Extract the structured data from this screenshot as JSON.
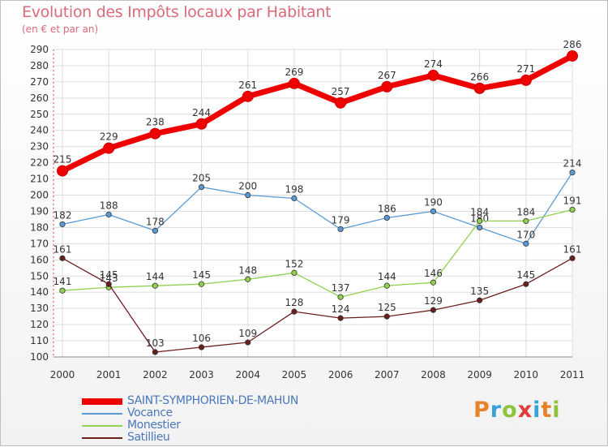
{
  "title": "Evolution des Impôts locaux par Habitant",
  "subtitle": "(en € et par an)",
  "logo": {
    "letters": [
      "P",
      "r",
      "o",
      "x",
      "i",
      "t",
      "i"
    ],
    "colors": [
      "#e6832a",
      "#3aa0d8",
      "#8cc43c",
      "#e03a3a",
      "#3aa0d8",
      "#e6832a",
      "#8cc43c"
    ]
  },
  "chart_data": {
    "type": "line",
    "x": [
      "2000",
      "2001",
      "2002",
      "2003",
      "2004",
      "2005",
      "2006",
      "2007",
      "2008",
      "2009",
      "2010",
      "2011"
    ],
    "ylim": [
      100,
      290
    ],
    "yticks": [
      100,
      110,
      120,
      130,
      140,
      150,
      160,
      170,
      180,
      190,
      200,
      210,
      220,
      230,
      240,
      250,
      260,
      270,
      280,
      290
    ],
    "grid": true,
    "legend_position": "bottom-left",
    "series": [
      {
        "name": "SAINT-SYMPHORIEN-DE-MAHUN",
        "color": "#ee0000",
        "emphasis": true,
        "values": [
          215,
          229,
          238,
          244,
          261,
          269,
          257,
          267,
          274,
          266,
          271,
          286
        ]
      },
      {
        "name": "Vocance",
        "color": "#5b9bd5",
        "emphasis": false,
        "values": [
          182,
          188,
          178,
          205,
          200,
          198,
          179,
          186,
          190,
          180,
          170,
          214
        ]
      },
      {
        "name": "Monestier",
        "color": "#92d050",
        "emphasis": false,
        "values": [
          141,
          143,
          144,
          145,
          148,
          152,
          137,
          144,
          146,
          184,
          184,
          191
        ]
      },
      {
        "name": "Satillieu",
        "color": "#6b1e1e",
        "emphasis": false,
        "values": [
          161,
          145,
          103,
          106,
          109,
          128,
          124,
          125,
          129,
          135,
          145,
          161
        ]
      }
    ]
  }
}
